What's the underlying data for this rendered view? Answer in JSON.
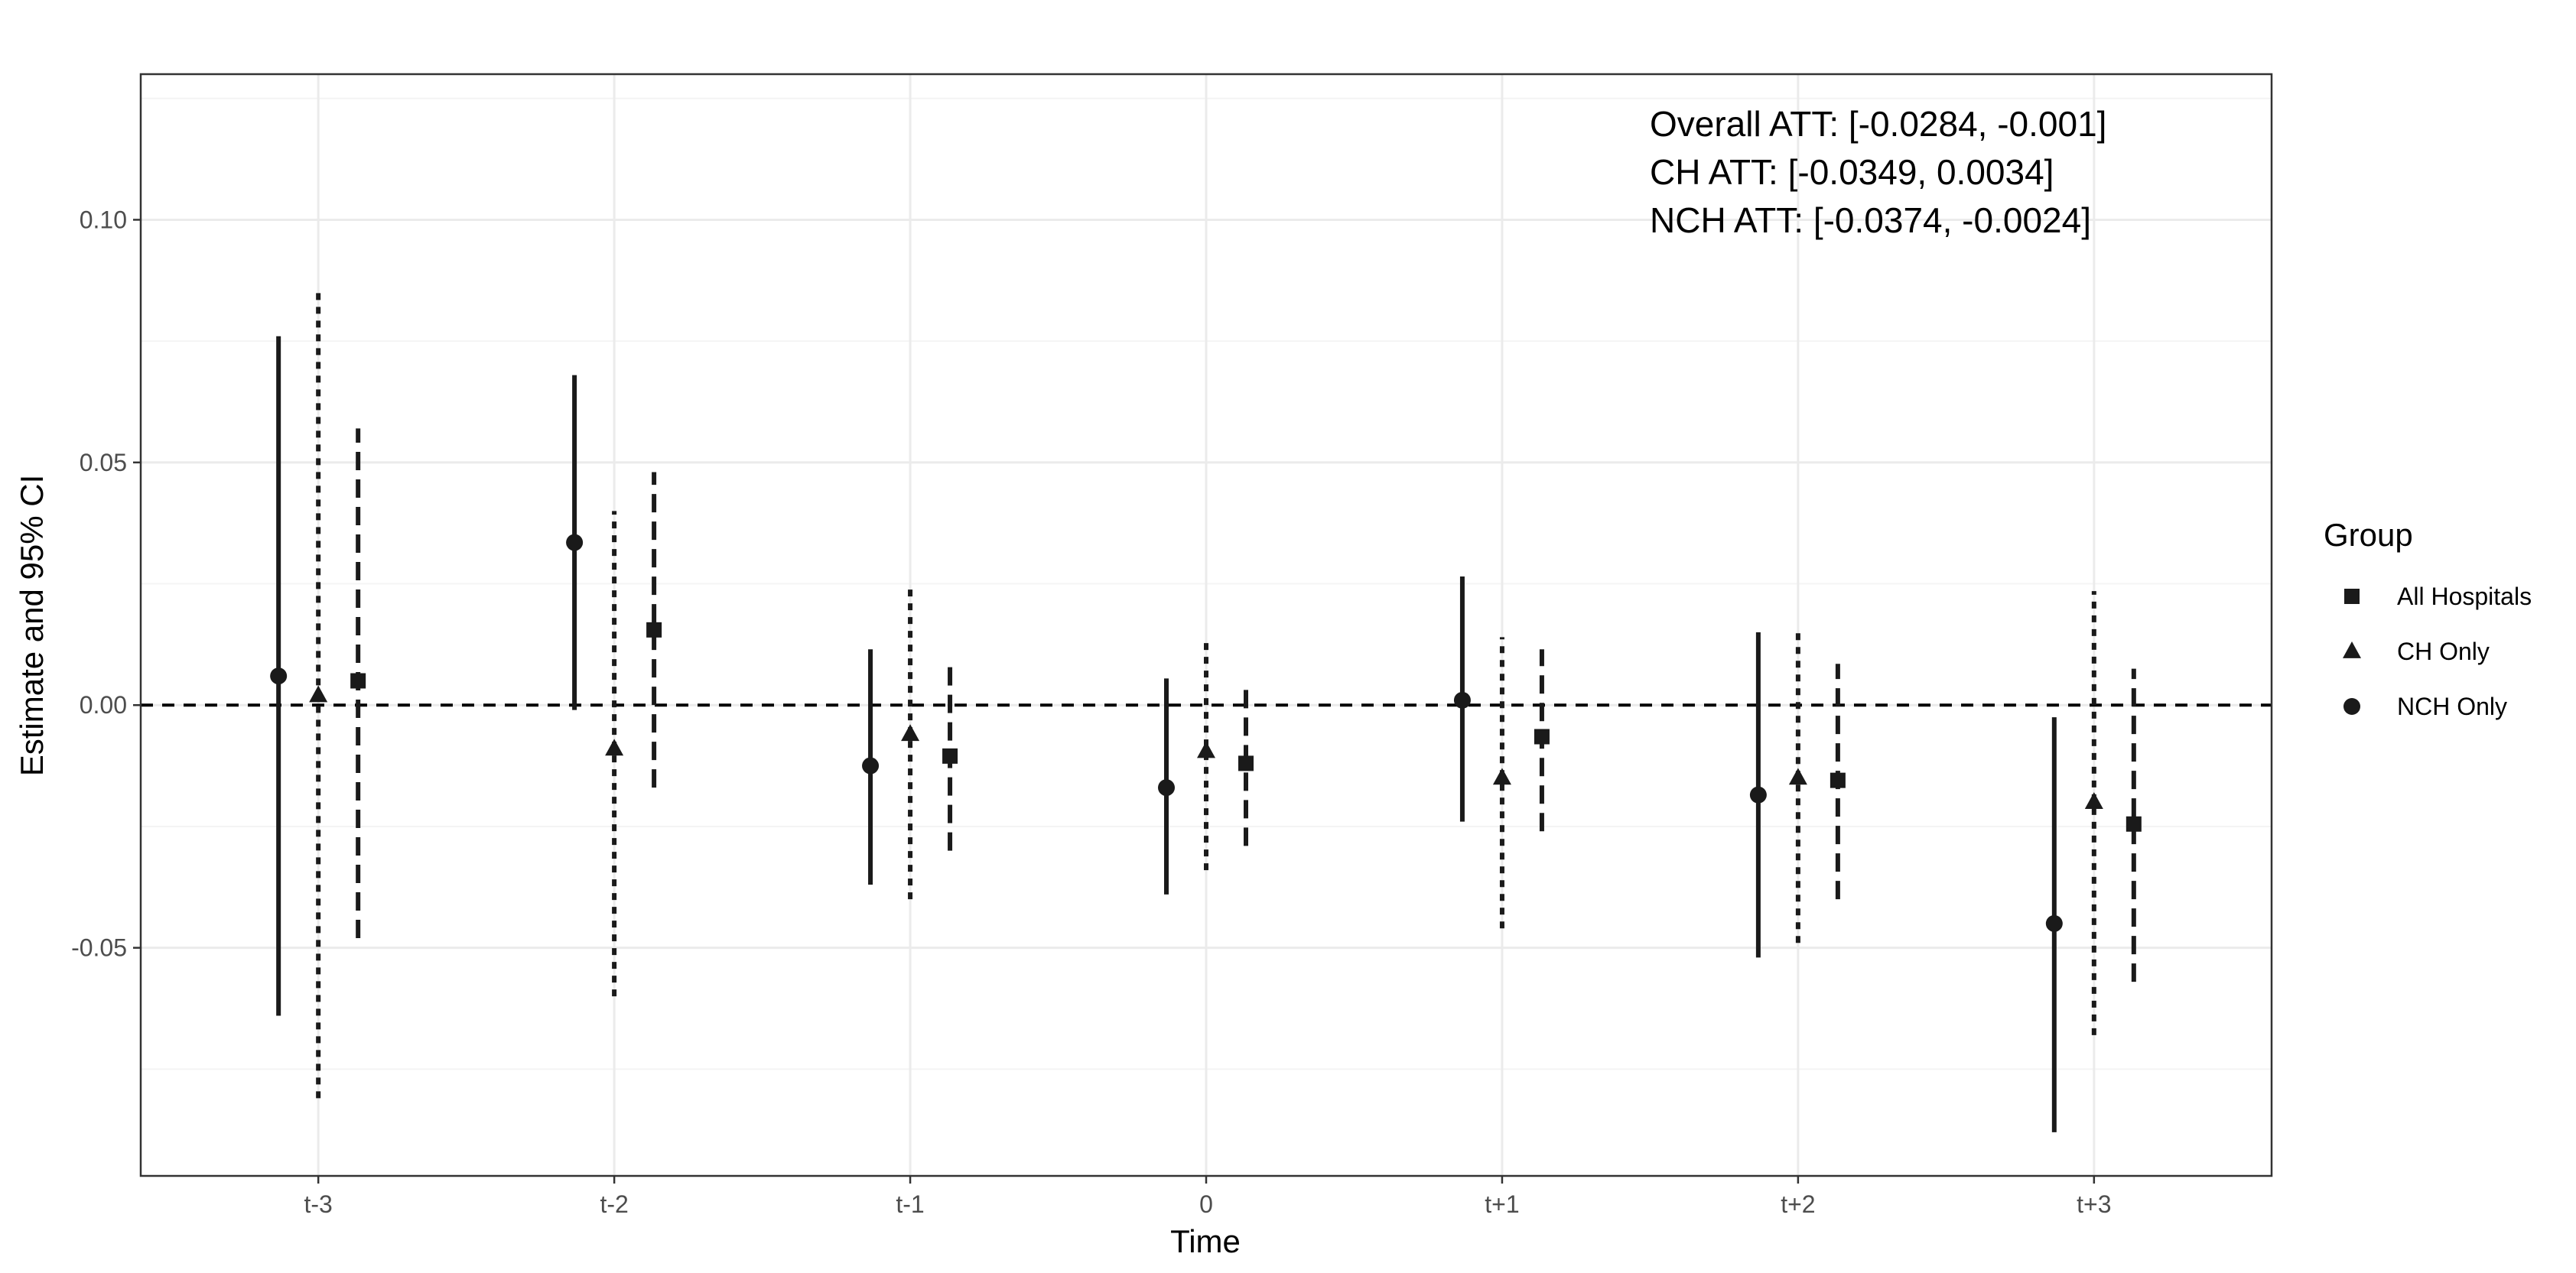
{
  "chart_data": {
    "type": "errorbar",
    "xlabel": "Time",
    "ylabel": "Estimate and 95% CI",
    "categories": [
      "t-3",
      "t-2",
      "t-1",
      "0",
      "t+1",
      "t+2",
      "t+3"
    ],
    "ylim": [
      -0.097,
      0.13
    ],
    "yticks": [
      -0.05,
      0.0,
      0.05,
      0.1
    ],
    "ytick_labels": [
      "-0.05",
      "0.00",
      "0.05",
      "0.10"
    ],
    "reference_line": 0,
    "grid": true,
    "legend": {
      "title": "Group",
      "position": "right",
      "entries": [
        {
          "label": "All Hospitals",
          "shape": "square"
        },
        {
          "label": "CH Only",
          "shape": "triangle"
        },
        {
          "label": "NCH Only",
          "shape": "circle"
        }
      ]
    },
    "series": [
      {
        "name": "NCH Only",
        "shape": "circle",
        "line_style": "solid",
        "estimates": [
          0.006,
          0.0335,
          -0.0125,
          -0.017,
          0.001,
          -0.0185,
          -0.045
        ],
        "lower": [
          -0.064,
          -0.001,
          -0.037,
          -0.039,
          -0.024,
          -0.052,
          -0.088
        ],
        "upper": [
          0.076,
          0.068,
          0.0115,
          0.0055,
          0.0265,
          0.015,
          -0.0025
        ]
      },
      {
        "name": "CH Only",
        "shape": "triangle",
        "line_style": "dotted",
        "estimates": [
          0.002,
          -0.009,
          -0.006,
          -0.0095,
          -0.015,
          -0.015,
          -0.02
        ],
        "lower": [
          -0.081,
          -0.06,
          -0.04,
          -0.034,
          -0.046,
          -0.049,
          -0.068
        ],
        "upper": [
          0.085,
          0.04,
          0.025,
          0.013,
          0.014,
          0.0155,
          0.0235
        ]
      },
      {
        "name": "All Hospitals",
        "shape": "square",
        "line_style": "dashed",
        "estimates": [
          0.005,
          0.0155,
          -0.0105,
          -0.012,
          -0.0065,
          -0.0155,
          -0.0245
        ],
        "lower": [
          -0.048,
          -0.017,
          -0.03,
          -0.029,
          -0.026,
          -0.04,
          -0.057
        ],
        "upper": [
          0.057,
          0.048,
          0.008,
          0.005,
          0.0115,
          0.0085,
          0.0075
        ]
      }
    ],
    "annotations": [
      "Overall ATT: [-0.0284, -0.001]",
      "CH ATT: [-0.0349, 0.0034]",
      "NCH ATT: [-0.0374, -0.0024]"
    ]
  },
  "colors": {
    "mark": "#1a1a1a",
    "grid_major": "#ebebeb",
    "grid_minor": "#f4f4f4",
    "panel_border": "#333333",
    "tick_text": "#4d4d4d"
  }
}
